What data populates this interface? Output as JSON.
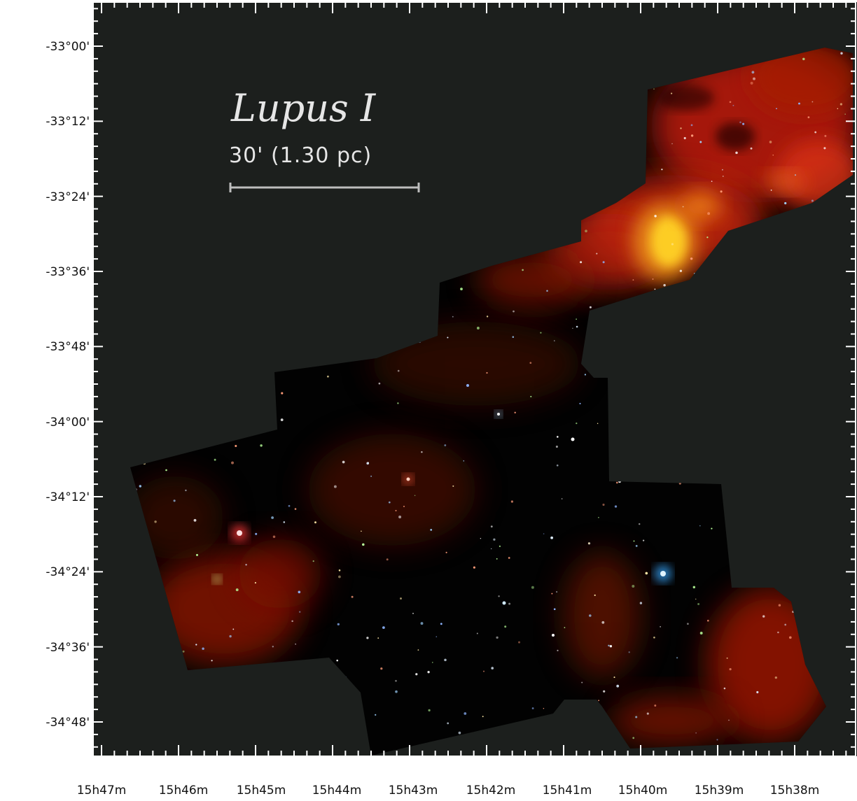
{
  "figure": {
    "title": "Lupus I",
    "scale_bar_label": "30' (1.30 pc)",
    "y_tick_labels": [
      "-33°00'",
      "-33°12'",
      "-33°24'",
      "-33°36'",
      "-33°48'",
      "-34°00'",
      "-34°12'",
      "-34°24'",
      "-34°36'",
      "-34°48'"
    ],
    "x_tick_labels": [
      "15h47m",
      "15h46m",
      "15h45m",
      "15h44m",
      "15h43m",
      "15h42m",
      "15h41m",
      "15h40m",
      "15h39m",
      "15h38m"
    ],
    "colors": {
      "background": "#1c1f1d",
      "mosaic": "#000000",
      "axis": "#ffffff",
      "emission": "#d42a0a",
      "bright_emission": "#ffd21a",
      "scale_bar": "#bdbdbd"
    }
  }
}
